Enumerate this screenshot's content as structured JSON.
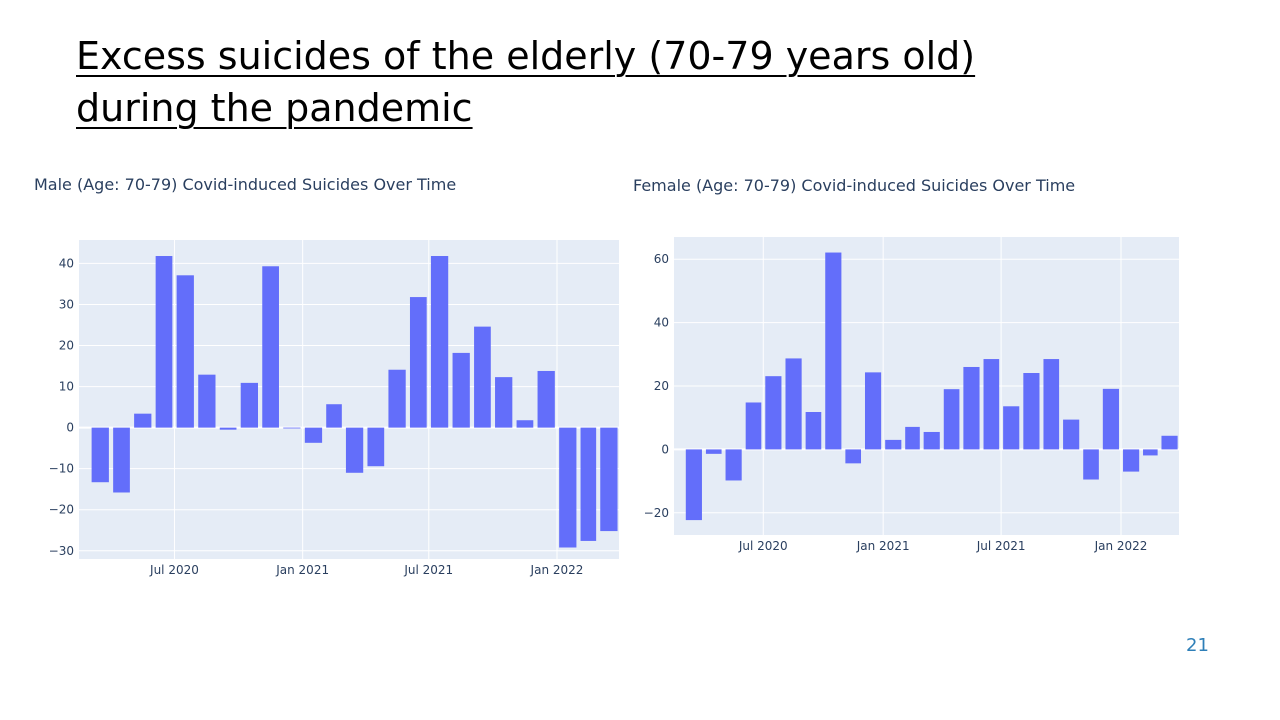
{
  "slide": {
    "title_line1": "Excess suicides of the elderly (70-79 years old)",
    "title_line2": "during the pandemic",
    "page_number": "21"
  },
  "colors": {
    "bar": "#636efa",
    "plot_bg": "#e5ecf6",
    "grid": "#ffffff",
    "tick_text": "#2a3f5f"
  },
  "chart_data": [
    {
      "type": "bar",
      "title": "Male (Age: 70-79) Covid-induced Suicides Over Time",
      "x": [
        "2020-03",
        "2020-04",
        "2020-05",
        "2020-06",
        "2020-07",
        "2020-08",
        "2020-09",
        "2020-10",
        "2020-11",
        "2020-12",
        "2021-01",
        "2021-02",
        "2021-03",
        "2021-04",
        "2021-05",
        "2021-06",
        "2021-07",
        "2021-08",
        "2021-09",
        "2021-10",
        "2021-11",
        "2021-12",
        "2022-01",
        "2022-02",
        "2022-03"
      ],
      "values": [
        -13.3,
        -15.8,
        3.4,
        41.8,
        37.1,
        12.9,
        -0.5,
        10.9,
        39.3,
        -0.2,
        -3.7,
        5.7,
        -11.0,
        -9.4,
        14.1,
        31.8,
        41.8,
        18.2,
        24.6,
        12.3,
        1.8,
        13.8,
        -29.2,
        -27.6,
        -25.2
      ],
      "xlim": [
        "2020-02-15",
        "2022-03-31"
      ],
      "ylim": [
        -32,
        45.7
      ],
      "xticks": [
        {
          "date": "2020-07",
          "label": "Jul 2020"
        },
        {
          "date": "2021-01",
          "label": "Jan 2021"
        },
        {
          "date": "2021-07",
          "label": "Jul 2021"
        },
        {
          "date": "2022-01",
          "label": "Jan 2022"
        }
      ],
      "yticks": [
        {
          "value": 40,
          "label": "40"
        },
        {
          "value": 30,
          "label": "30"
        },
        {
          "value": 20,
          "label": "20"
        },
        {
          "value": 10,
          "label": "10"
        },
        {
          "value": 0,
          "label": "0"
        },
        {
          "value": -10,
          "label": "−10"
        },
        {
          "value": -20,
          "label": "−20"
        },
        {
          "value": -30,
          "label": "−30"
        }
      ],
      "grid": true
    },
    {
      "type": "bar",
      "title": "Female (Age: 70-79) Covid-induced Suicides Over Time",
      "x": [
        "2020-03",
        "2020-04",
        "2020-05",
        "2020-06",
        "2020-07",
        "2020-08",
        "2020-09",
        "2020-10",
        "2020-11",
        "2020-12",
        "2021-01",
        "2021-02",
        "2021-03",
        "2021-04",
        "2021-05",
        "2021-06",
        "2021-07",
        "2021-08",
        "2021-09",
        "2021-10",
        "2021-11",
        "2021-12",
        "2022-01",
        "2022-02",
        "2022-03"
      ],
      "values": [
        -22.3,
        -1.4,
        -9.8,
        14.8,
        23.1,
        28.7,
        11.8,
        62.1,
        -4.4,
        24.3,
        3.0,
        7.1,
        5.5,
        19.0,
        26.0,
        28.5,
        13.6,
        24.1,
        28.5,
        9.4,
        -9.5,
        19.1,
        -7.0,
        -1.9,
        4.3
      ],
      "xlim": [
        "2020-02-15",
        "2022-03-31"
      ],
      "ylim": [
        -27,
        67
      ],
      "xticks": [
        {
          "date": "2020-07",
          "label": "Jul 2020"
        },
        {
          "date": "2021-01",
          "label": "Jan 2021"
        },
        {
          "date": "2021-07",
          "label": "Jul 2021"
        },
        {
          "date": "2022-01",
          "label": "Jan 2022"
        }
      ],
      "yticks": [
        {
          "value": 60,
          "label": "60"
        },
        {
          "value": 40,
          "label": "40"
        },
        {
          "value": 20,
          "label": "20"
        },
        {
          "value": 0,
          "label": "0"
        },
        {
          "value": -20,
          "label": "−20"
        }
      ],
      "grid": true
    }
  ]
}
